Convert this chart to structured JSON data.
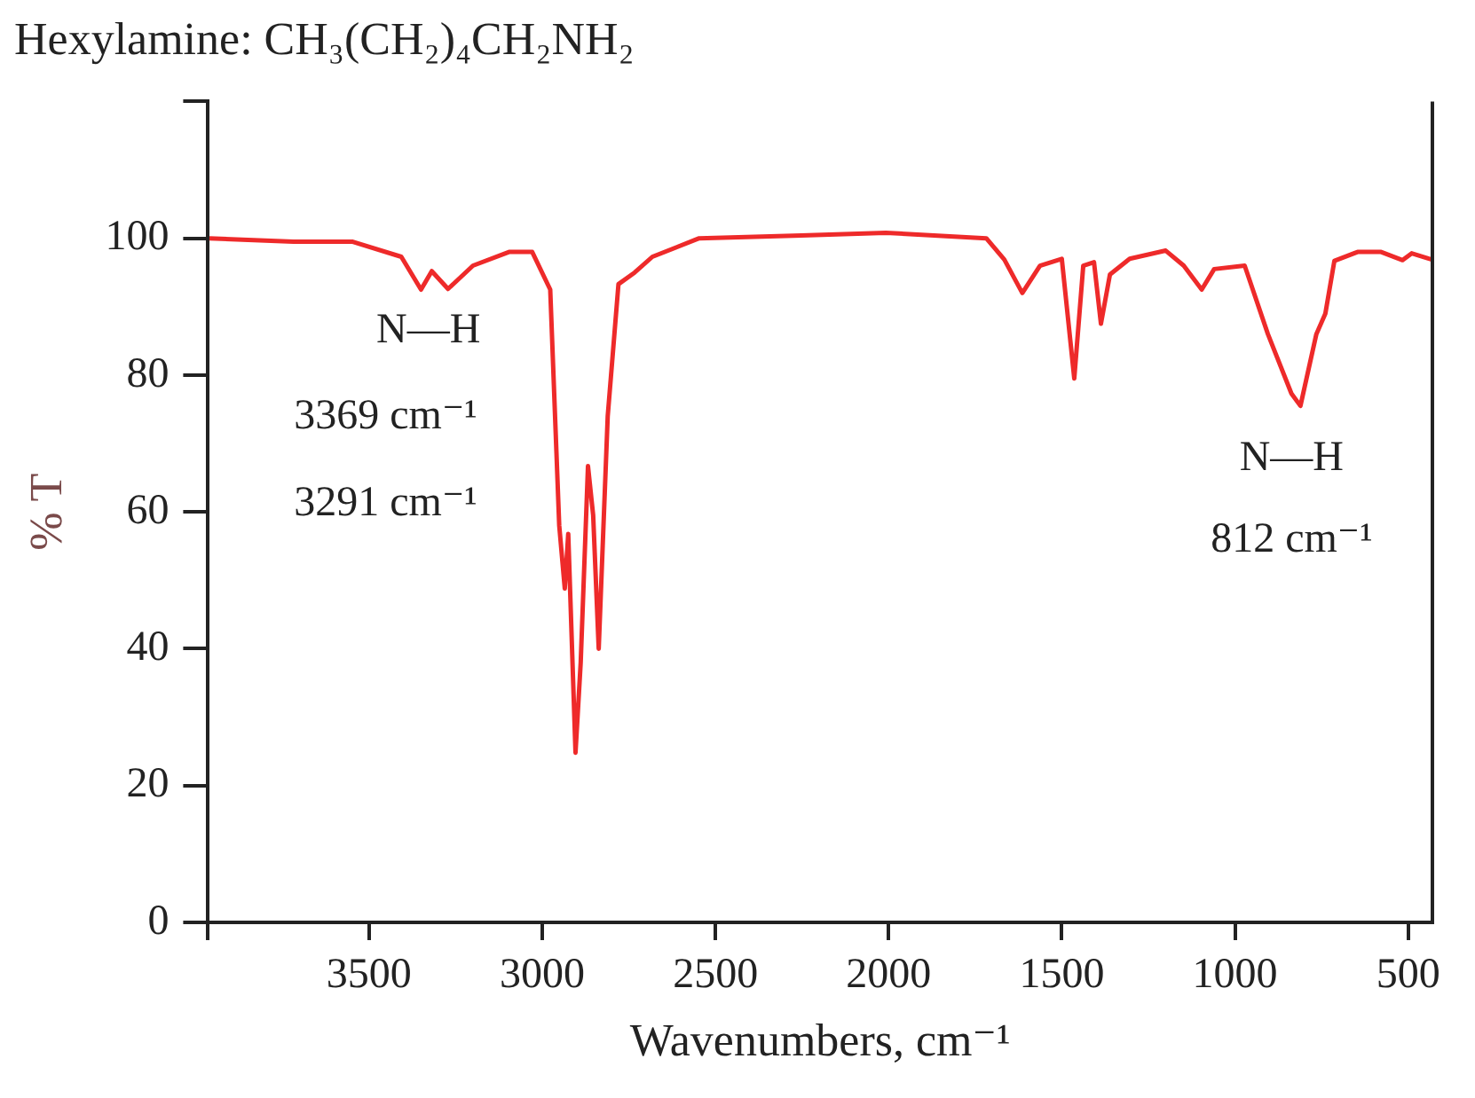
{
  "chart_data": {
    "type": "line",
    "title": "Hexylamine: CH₃(CH₂)₄CH₂NH₂",
    "xlabel": "Wavenumbers, cm⁻¹",
    "ylabel": "% T",
    "xlim": [
      3965,
      430
    ],
    "ylim": [
      0,
      120
    ],
    "xticks": [
      {
        "value": 3965,
        "label": null
      },
      3500,
      3000,
      2500,
      2000,
      1500,
      1000,
      500
    ],
    "yticks": [
      0,
      20,
      40,
      60,
      80,
      100,
      {
        "value": 120,
        "label": null
      }
    ],
    "grid": false,
    "legend": false,
    "marker": "none",
    "line_style": "solid",
    "series": [
      {
        "color": "#ee2a2a",
        "x": [
          3961,
          3718,
          3547,
          3407,
          3350,
          3319,
          3272,
          3200,
          3096,
          3029,
          2977,
          2951,
          2935,
          2925,
          2904,
          2889,
          2868,
          2853,
          2837,
          2811,
          2780,
          2733,
          2682,
          2547,
          2252,
          2008,
          1718,
          1666,
          1614,
          1563,
          1500,
          1464,
          1438,
          1407,
          1387,
          1361,
          1304,
          1200,
          1148,
          1096,
          1060,
          972,
          905,
          837,
          811,
          765,
          739,
          713,
          646,
          578,
          516,
          490,
          432
        ],
        "values": [
          100,
          99.5,
          99.5,
          97.3,
          92.5,
          95.2,
          92.6,
          96,
          98,
          98,
          92.5,
          58,
          48.8,
          56.8,
          24.8,
          38,
          66.7,
          59.5,
          40,
          74,
          93.3,
          95,
          97.3,
          100,
          100.4,
          100.8,
          100,
          96.9,
          92,
          96,
          97,
          79.5,
          96,
          96.5,
          87.5,
          94.7,
          97,
          98.2,
          96,
          92.5,
          95.5,
          96,
          86,
          77.3,
          75.5,
          86,
          89,
          96.7,
          98,
          98,
          96.8,
          97.8,
          96.9
        ]
      }
    ],
    "annotations": [
      "N—H",
      "3369 cm⁻¹",
      "3291 cm⁻¹",
      "N—H",
      "812 cm⁻¹"
    ]
  }
}
